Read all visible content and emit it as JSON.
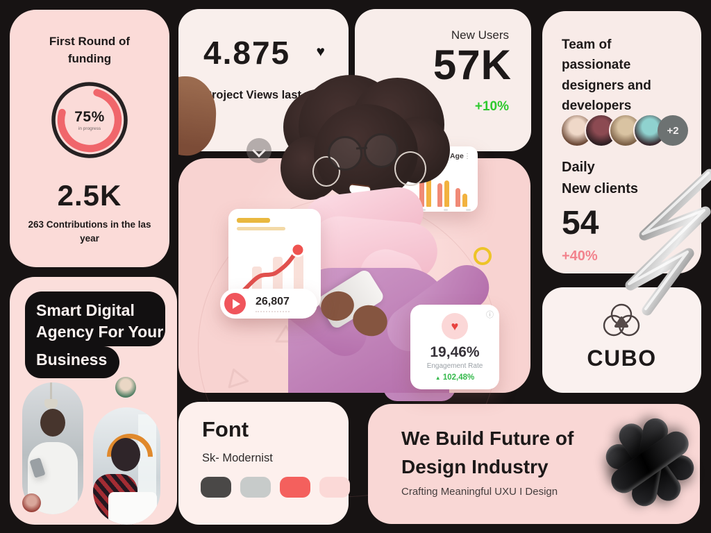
{
  "palette": {
    "background": "#171313",
    "pink_card": "#f8d3d1",
    "cream_card": "#f9efec",
    "accent_red": "#f0666b",
    "accent_green": "#2ec92e",
    "accent_pink": "#f2838d",
    "bubble_black": "#121011"
  },
  "cards": {
    "funding": {
      "title": "First Round of funding",
      "percent": "75%",
      "percent_caption": "in progress",
      "progress": 75,
      "stat": "2.5K",
      "stat_caption": "263 Contributions in the las year"
    },
    "project_views": {
      "value": "4.875",
      "heart": "♥",
      "label": "Project Views last year"
    },
    "new_users": {
      "title": "New Users",
      "value": "57K",
      "delta": "+10%"
    },
    "team": {
      "title": "Team of passionate designers and developers",
      "extra_count": "+2",
      "daily": "Daily",
      "clients": "New clients",
      "value": "54",
      "delta": "+40%",
      "avatar_colors": [
        [
          "#efd8c8",
          "#6d4a38"
        ],
        [
          "#8c4a52",
          "#2f1f22"
        ],
        [
          "#d9c3a2",
          "#7d6147"
        ],
        [
          "#8fd2cf",
          "#3a2a30"
        ]
      ]
    },
    "cubo": {
      "brand": "CUBO"
    },
    "smart": {
      "line1": "Smart Digital",
      "line2": "Agency For Your",
      "line3": "Business"
    },
    "font": {
      "title": "Font",
      "subtitle": "Sk- Modernist",
      "swatches": [
        "#4a4847",
        "#c7cbca",
        "#f4605d",
        "#fbd9d7"
      ]
    },
    "build": {
      "line1": "We Build Future of",
      "line2": "Design Industry",
      "caption": "Crafting Meaningful UXU I Design"
    }
  },
  "widgets": {
    "segmentation": {
      "title": "Segmentation Age",
      "menu_icon": "⋮",
      "series_colors": [
        "#f08a76",
        "#f2b23f"
      ],
      "groups": [
        [
          22,
          13
        ],
        [
          56,
          47
        ],
        [
          34,
          38
        ],
        [
          27,
          19
        ]
      ]
    },
    "views_pill": {
      "value": "26,807"
    },
    "engagement": {
      "value": "19,46%",
      "label": "Engagement Rate",
      "delta_arrow": "▲",
      "delta": "102,48%",
      "info_icon": "ⓘ",
      "heart": "♥"
    }
  }
}
